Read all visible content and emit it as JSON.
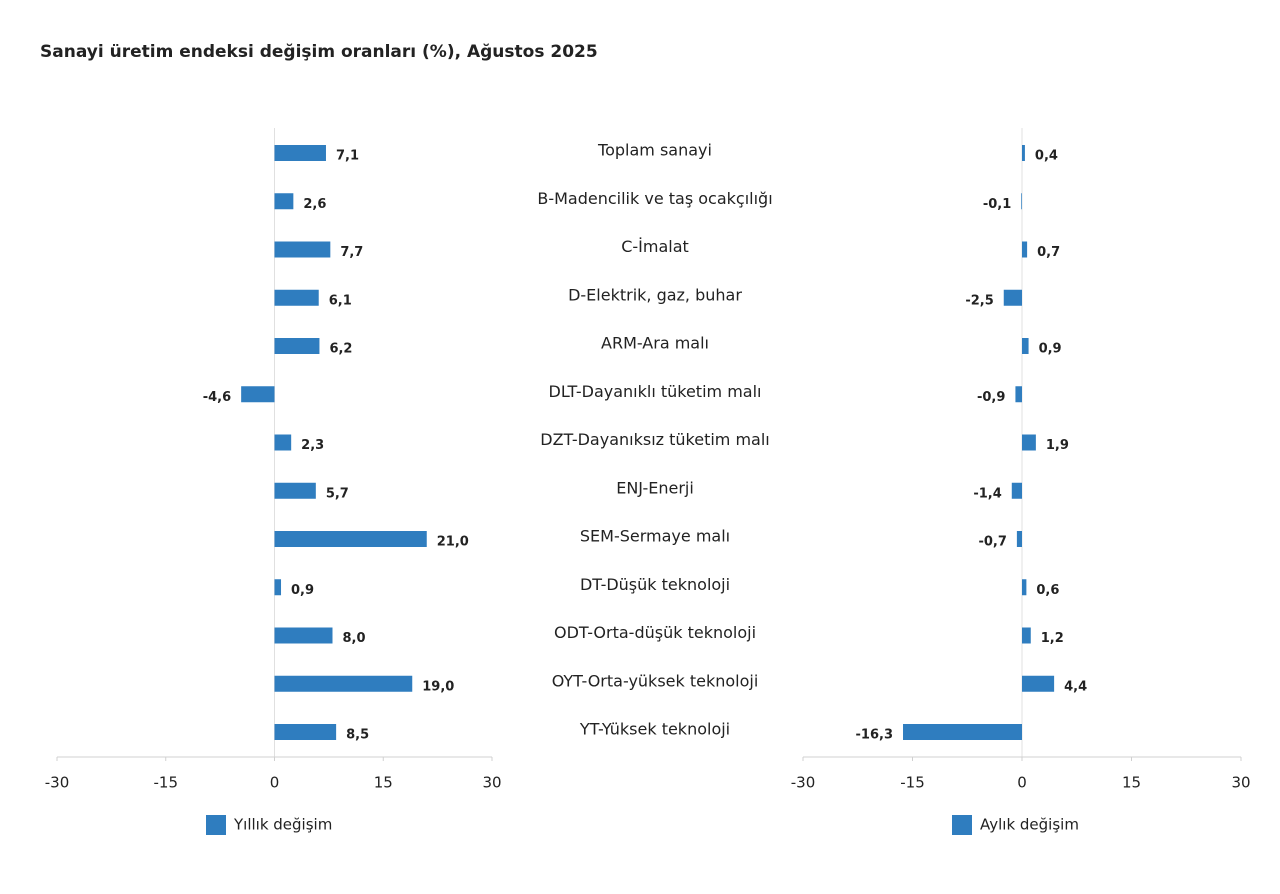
{
  "chart_data": [
    {
      "type": "barh",
      "title": "Sanayi üretim endeksi değişim oranları (%), Ağustos 2025",
      "categories": [
        "Toplam sanayi",
        "B-Madencilik ve taş ocakçılığı",
        "C-İmalat",
        "D-Elektrik, gaz, buhar",
        "ARM-Ara malı",
        "DLT-Dayanıklı tüketim malı",
        "DZT-Dayanıksız tüketim malı",
        "ENJ-Enerji",
        "SEM-Sermaye malı",
        "DT-Düşük teknoloji",
        "ODT-Orta-düşük teknoloji",
        "OYT-Orta-yüksek teknoloji",
        "YT-Yüksek teknoloji"
      ],
      "series": [
        {
          "name": "Yıllık değişim",
          "color": "#2f7dbf",
          "values": [
            7.1,
            2.6,
            7.7,
            6.1,
            6.2,
            -4.6,
            2.3,
            5.7,
            21.0,
            0.9,
            8.0,
            19.0,
            8.5
          ],
          "value_labels": [
            "7,1",
            "2,6",
            "7,7",
            "6,1",
            "6,2",
            "-4,6",
            "2,3",
            "5,7",
            "21,0",
            "0,9",
            "8,0",
            "19,0",
            "8,5"
          ]
        }
      ],
      "xlim": [
        -30,
        30
      ],
      "xticks": [
        -30,
        -15,
        0,
        15,
        30
      ]
    },
    {
      "type": "barh",
      "series": [
        {
          "name": "Aylık değişim",
          "color": "#2f7dbf",
          "values": [
            0.4,
            -0.1,
            0.7,
            -2.5,
            0.9,
            -0.9,
            1.9,
            -1.4,
            -0.7,
            0.6,
            1.2,
            4.4,
            -16.3
          ],
          "value_labels": [
            "0,4",
            "-0,1",
            "0,7",
            "-2,5",
            "0,9",
            "-0,9",
            "1,9",
            "-1,4",
            "-0,7",
            "0,6",
            "1,2",
            "4,4",
            "-16,3"
          ]
        }
      ],
      "xlim": [
        -30,
        30
      ],
      "xticks": [
        -30,
        -15,
        0,
        15,
        30
      ]
    }
  ]
}
